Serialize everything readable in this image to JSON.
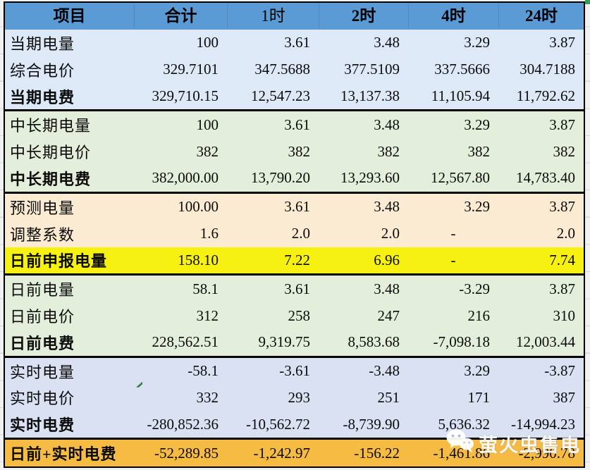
{
  "header": {
    "columns": [
      {
        "label": "项目",
        "bold": true
      },
      {
        "label": "合计",
        "bold": true
      },
      {
        "label": "1时",
        "bold": false
      },
      {
        "label": "2时",
        "bold": true
      },
      {
        "label": "4时",
        "bold": true
      },
      {
        "label": "24时",
        "bold": true
      }
    ],
    "bg": "#5B9BD5"
  },
  "sections": [
    {
      "name": "current-period",
      "bg": "#DDE9F6",
      "rows": [
        {
          "label": "当期电量",
          "bold": false,
          "values": [
            "100",
            "3.61",
            "3.48",
            "3.29",
            "3.87"
          ]
        },
        {
          "label": "综合电价",
          "bold": false,
          "values": [
            "329.7101",
            "347.5688",
            "377.5109",
            "337.5666",
            "304.7188"
          ]
        },
        {
          "label": "当期电费",
          "bold": true,
          "values": [
            "329,710.15",
            "12,547.23",
            "13,137.38",
            "11,105.94",
            "11,792.62"
          ]
        }
      ]
    },
    {
      "name": "mid-long-term",
      "bg": "#E3EFDA",
      "rows": [
        {
          "label": "中长期电量",
          "bold": false,
          "values": [
            "100",
            "3.61",
            "3.48",
            "3.29",
            "3.87"
          ]
        },
        {
          "label": "中长期电价",
          "bold": false,
          "values": [
            "382",
            "382",
            "382",
            "382",
            "382"
          ]
        },
        {
          "label": "中长期电费",
          "bold": true,
          "values": [
            "382,000.00",
            "13,790.20",
            "13,293.60",
            "12,567.80",
            "14,783.40"
          ]
        }
      ]
    },
    {
      "name": "forecast-declare",
      "bg": "#FAEBD2",
      "rows": [
        {
          "label": "预测电量",
          "bold": false,
          "values": [
            "100.00",
            "3.61",
            "3.48",
            "3.29",
            "3.87"
          ]
        },
        {
          "label": "调整系数",
          "bold": false,
          "values": [
            "1.6",
            "2.0",
            "2.0",
            "-",
            "2.0"
          ]
        },
        {
          "label": "日前申报电量",
          "bold": true,
          "bg": "#F7F112",
          "values": [
            "158.10",
            "7.22",
            "6.96",
            "-",
            "7.74"
          ]
        }
      ]
    },
    {
      "name": "day-ahead",
      "bg": "#E3EFDA",
      "rows": [
        {
          "label": "日前电量",
          "bold": false,
          "values": [
            "58.1",
            "3.61",
            "3.48",
            "-3.29",
            "3.87"
          ]
        },
        {
          "label": "日前电价",
          "bold": false,
          "values": [
            "312",
            "258",
            "247",
            "216",
            "310"
          ]
        },
        {
          "label": "日前电费",
          "bold": true,
          "values": [
            "228,562.51",
            "9,319.75",
            "8,583.68",
            "-7,098.18",
            "12,003.44"
          ]
        }
      ]
    },
    {
      "name": "real-time",
      "bg": "#D9E1F2",
      "rows": [
        {
          "label": "实时电量",
          "bold": false,
          "values": [
            "-58.1",
            "-3.61",
            "-3.48",
            "3.29",
            "-3.87"
          ]
        },
        {
          "label": "实时电价",
          "bold": false,
          "values": [
            "332",
            "293",
            "251",
            "171",
            "387"
          ]
        },
        {
          "label": "实时电费",
          "bold": true,
          "values": [
            "-280,852.36",
            "-10,562.72",
            "-8,739.90",
            "5,636.32",
            "-14,994.23"
          ]
        }
      ]
    },
    {
      "name": "total-da-rt",
      "bg": "#F6BB43",
      "rows": [
        {
          "label": "日前+实时电费",
          "bold": true,
          "values": [
            "-52,289.85",
            "-1,242.97",
            "-156.22",
            "-1,461.86",
            "-2,990.78"
          ]
        }
      ]
    }
  ],
  "marker": {
    "row": "实时电价",
    "column": "合计",
    "color": "#2E7D32"
  },
  "watermark": {
    "text": "萤火虫售电",
    "icon": "wechat-icon"
  },
  "colors": {
    "header_bg": "#5B9BD5",
    "section_blue": "#DDE9F6",
    "section_green": "#E3EFDA",
    "section_tan": "#FAEBD2",
    "row_yellow": "#F7F112",
    "section_periwinkle": "#D9E1F2",
    "row_orange": "#F6BB43",
    "border": "#000000",
    "selection_corner_green": "#2F9E57"
  }
}
